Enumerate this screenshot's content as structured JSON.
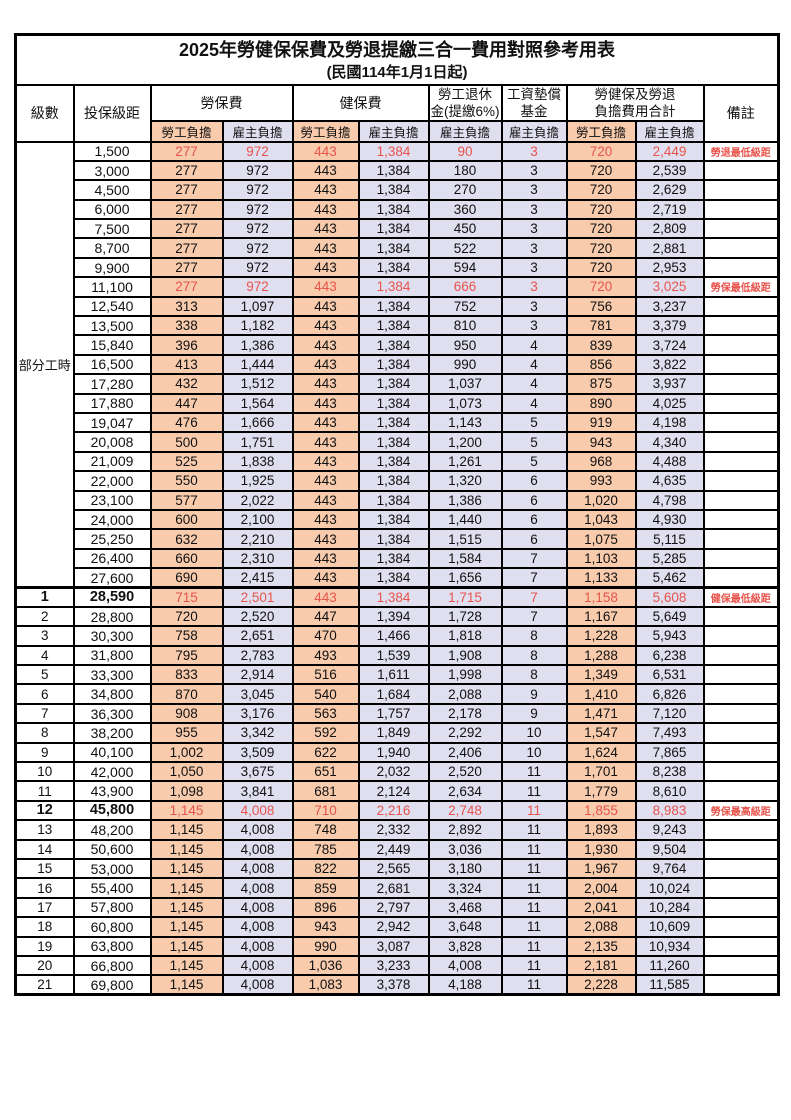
{
  "title": "2025年勞健保保費及勞退提繳三合一費用對照參考用表",
  "subtitle": "(民國114年1月1日起)",
  "columns": {
    "level": "級數",
    "bracket": "投保級距",
    "labor": "勞保費",
    "health": "健保費",
    "pension_line1": "勞工退休",
    "pension_line2": "金(提繳6%)",
    "wage_fund_line1": "工資墊償",
    "wage_fund_line2": "基金",
    "total_line1": "勞健保及勞退",
    "total_line2": "負擔費用合計",
    "remark": "備註",
    "employee": "勞工負擔",
    "employer": "雇主負擔"
  },
  "group_label": "部分工時",
  "group_rowspan": 23,
  "colors": {
    "employee_bg": "#F8CBAD",
    "employer_bg": "#DFDFF0",
    "highlight_text": "#E8544C"
  },
  "rows": [
    {
      "level": "",
      "bracket": "1,500",
      "vals": [
        "277",
        "972",
        "443",
        "1,384",
        "90",
        "3",
        "720",
        "2,449"
      ],
      "remark": "勞退最低級距",
      "hl": 1
    },
    {
      "level": "",
      "bracket": "3,000",
      "vals": [
        "277",
        "972",
        "443",
        "1,384",
        "180",
        "3",
        "720",
        "2,539"
      ]
    },
    {
      "level": "",
      "bracket": "4,500",
      "vals": [
        "277",
        "972",
        "443",
        "1,384",
        "270",
        "3",
        "720",
        "2,629"
      ]
    },
    {
      "level": "",
      "bracket": "6,000",
      "vals": [
        "277",
        "972",
        "443",
        "1,384",
        "360",
        "3",
        "720",
        "2,719"
      ]
    },
    {
      "level": "",
      "bracket": "7,500",
      "vals": [
        "277",
        "972",
        "443",
        "1,384",
        "450",
        "3",
        "720",
        "2,809"
      ]
    },
    {
      "level": "",
      "bracket": "8,700",
      "vals": [
        "277",
        "972",
        "443",
        "1,384",
        "522",
        "3",
        "720",
        "2,881"
      ]
    },
    {
      "level": "",
      "bracket": "9,900",
      "vals": [
        "277",
        "972",
        "443",
        "1,384",
        "594",
        "3",
        "720",
        "2,953"
      ]
    },
    {
      "level": "",
      "bracket": "11,100",
      "vals": [
        "277",
        "972",
        "443",
        "1,384",
        "666",
        "3",
        "720",
        "3,025"
      ],
      "remark": "勞保最低級距",
      "hl": 1
    },
    {
      "level": "",
      "bracket": "12,540",
      "vals": [
        "313",
        "1,097",
        "443",
        "1,384",
        "752",
        "3",
        "756",
        "3,237"
      ]
    },
    {
      "level": "",
      "bracket": "13,500",
      "vals": [
        "338",
        "1,182",
        "443",
        "1,384",
        "810",
        "3",
        "781",
        "3,379"
      ]
    },
    {
      "level": "",
      "bracket": "15,840",
      "vals": [
        "396",
        "1,386",
        "443",
        "1,384",
        "950",
        "4",
        "839",
        "3,724"
      ]
    },
    {
      "level": "",
      "bracket": "16,500",
      "vals": [
        "413",
        "1,444",
        "443",
        "1,384",
        "990",
        "4",
        "856",
        "3,822"
      ]
    },
    {
      "level": "",
      "bracket": "17,280",
      "vals": [
        "432",
        "1,512",
        "443",
        "1,384",
        "1,037",
        "4",
        "875",
        "3,937"
      ]
    },
    {
      "level": "",
      "bracket": "17,880",
      "vals": [
        "447",
        "1,564",
        "443",
        "1,384",
        "1,073",
        "4",
        "890",
        "4,025"
      ]
    },
    {
      "level": "",
      "bracket": "19,047",
      "vals": [
        "476",
        "1,666",
        "443",
        "1,384",
        "1,143",
        "5",
        "919",
        "4,198"
      ]
    },
    {
      "level": "",
      "bracket": "20,008",
      "vals": [
        "500",
        "1,751",
        "443",
        "1,384",
        "1,200",
        "5",
        "943",
        "4,340"
      ]
    },
    {
      "level": "",
      "bracket": "21,009",
      "vals": [
        "525",
        "1,838",
        "443",
        "1,384",
        "1,261",
        "5",
        "968",
        "4,488"
      ]
    },
    {
      "level": "",
      "bracket": "22,000",
      "vals": [
        "550",
        "1,925",
        "443",
        "1,384",
        "1,320",
        "6",
        "993",
        "4,635"
      ]
    },
    {
      "level": "",
      "bracket": "23,100",
      "vals": [
        "577",
        "2,022",
        "443",
        "1,384",
        "1,386",
        "6",
        "1,020",
        "4,798"
      ]
    },
    {
      "level": "",
      "bracket": "24,000",
      "vals": [
        "600",
        "2,100",
        "443",
        "1,384",
        "1,440",
        "6",
        "1,043",
        "4,930"
      ]
    },
    {
      "level": "",
      "bracket": "25,250",
      "vals": [
        "632",
        "2,210",
        "443",
        "1,384",
        "1,515",
        "6",
        "1,075",
        "5,115"
      ]
    },
    {
      "level": "",
      "bracket": "26,400",
      "vals": [
        "660",
        "2,310",
        "443",
        "1,384",
        "1,584",
        "7",
        "1,103",
        "5,285"
      ]
    },
    {
      "level": "",
      "bracket": "27,600",
      "vals": [
        "690",
        "2,415",
        "443",
        "1,384",
        "1,656",
        "7",
        "1,133",
        "5,462"
      ]
    },
    {
      "level": "1",
      "bracket": "28,590",
      "vals": [
        "715",
        "2,501",
        "443",
        "1,384",
        "1,715",
        "7",
        "1,158",
        "5,608"
      ],
      "remark": "健保最低級距",
      "hl": 1,
      "em": 1,
      "thick": 1
    },
    {
      "level": "2",
      "bracket": "28,800",
      "vals": [
        "720",
        "2,520",
        "447",
        "1,394",
        "1,728",
        "7",
        "1,167",
        "5,649"
      ]
    },
    {
      "level": "3",
      "bracket": "30,300",
      "vals": [
        "758",
        "2,651",
        "470",
        "1,466",
        "1,818",
        "8",
        "1,228",
        "5,943"
      ]
    },
    {
      "level": "4",
      "bracket": "31,800",
      "vals": [
        "795",
        "2,783",
        "493",
        "1,539",
        "1,908",
        "8",
        "1,288",
        "6,238"
      ]
    },
    {
      "level": "5",
      "bracket": "33,300",
      "vals": [
        "833",
        "2,914",
        "516",
        "1,611",
        "1,998",
        "8",
        "1,349",
        "6,531"
      ]
    },
    {
      "level": "6",
      "bracket": "34,800",
      "vals": [
        "870",
        "3,045",
        "540",
        "1,684",
        "2,088",
        "9",
        "1,410",
        "6,826"
      ]
    },
    {
      "level": "7",
      "bracket": "36,300",
      "vals": [
        "908",
        "3,176",
        "563",
        "1,757",
        "2,178",
        "9",
        "1,471",
        "7,120"
      ]
    },
    {
      "level": "8",
      "bracket": "38,200",
      "vals": [
        "955",
        "3,342",
        "592",
        "1,849",
        "2,292",
        "10",
        "1,547",
        "7,493"
      ]
    },
    {
      "level": "9",
      "bracket": "40,100",
      "vals": [
        "1,002",
        "3,509",
        "622",
        "1,940",
        "2,406",
        "10",
        "1,624",
        "7,865"
      ]
    },
    {
      "level": "10",
      "bracket": "42,000",
      "vals": [
        "1,050",
        "3,675",
        "651",
        "2,032",
        "2,520",
        "11",
        "1,701",
        "8,238"
      ]
    },
    {
      "level": "11",
      "bracket": "43,900",
      "vals": [
        "1,098",
        "3,841",
        "681",
        "2,124",
        "2,634",
        "11",
        "1,779",
        "8,610"
      ]
    },
    {
      "level": "12",
      "bracket": "45,800",
      "vals": [
        "1,145",
        "4,008",
        "710",
        "2,216",
        "2,748",
        "11",
        "1,855",
        "8,983"
      ],
      "remark": "勞保最高級距",
      "hl": 1,
      "em": 1
    },
    {
      "level": "13",
      "bracket": "48,200",
      "vals": [
        "1,145",
        "4,008",
        "748",
        "2,332",
        "2,892",
        "11",
        "1,893",
        "9,243"
      ]
    },
    {
      "level": "14",
      "bracket": "50,600",
      "vals": [
        "1,145",
        "4,008",
        "785",
        "2,449",
        "3,036",
        "11",
        "1,930",
        "9,504"
      ]
    },
    {
      "level": "15",
      "bracket": "53,000",
      "vals": [
        "1,145",
        "4,008",
        "822",
        "2,565",
        "3,180",
        "11",
        "1,967",
        "9,764"
      ]
    },
    {
      "level": "16",
      "bracket": "55,400",
      "vals": [
        "1,145",
        "4,008",
        "859",
        "2,681",
        "3,324",
        "11",
        "2,004",
        "10,024"
      ]
    },
    {
      "level": "17",
      "bracket": "57,800",
      "vals": [
        "1,145",
        "4,008",
        "896",
        "2,797",
        "3,468",
        "11",
        "2,041",
        "10,284"
      ]
    },
    {
      "level": "18",
      "bracket": "60,800",
      "vals": [
        "1,145",
        "4,008",
        "943",
        "2,942",
        "3,648",
        "11",
        "2,088",
        "10,609"
      ]
    },
    {
      "level": "19",
      "bracket": "63,800",
      "vals": [
        "1,145",
        "4,008",
        "990",
        "3,087",
        "3,828",
        "11",
        "2,135",
        "10,934"
      ]
    },
    {
      "level": "20",
      "bracket": "66,800",
      "vals": [
        "1,145",
        "4,008",
        "1,036",
        "3,233",
        "4,008",
        "11",
        "2,181",
        "11,260"
      ]
    },
    {
      "level": "21",
      "bracket": "69,800",
      "vals": [
        "1,145",
        "4,008",
        "1,083",
        "3,378",
        "4,188",
        "11",
        "2,228",
        "11,585"
      ]
    }
  ]
}
